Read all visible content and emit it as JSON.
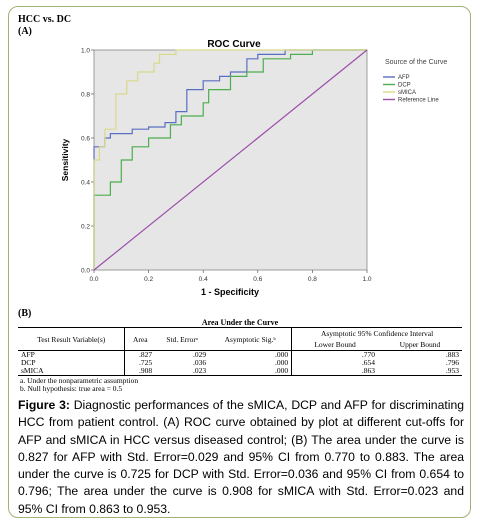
{
  "figure": {
    "title": "HCC vs. DC",
    "panel_a": "(A)",
    "panel_b": "(B)"
  },
  "chart_data": {
    "type": "line",
    "title": "ROC Curve",
    "xlabel": "1 - Specificity",
    "ylabel": "Sensitivity",
    "xlim": [
      0,
      1
    ],
    "ylim": [
      0,
      1
    ],
    "x_ticks": [
      "0.0",
      "0.2",
      "0.4",
      "0.6",
      "0.8",
      "1.0"
    ],
    "y_ticks": [
      "0.0",
      "0.2",
      "0.4",
      "0.6",
      "0.8",
      "1.0"
    ],
    "grid": false,
    "legend_title": "Source of the Curve",
    "legend_position": "right",
    "plot_background": "#e6e6e6",
    "series": [
      {
        "name": "AFP",
        "color": "#5b6fc2",
        "x": [
          0,
          0,
          0.04,
          0.04,
          0.06,
          0.06,
          0.14,
          0.14,
          0.2,
          0.2,
          0.26,
          0.26,
          0.3,
          0.3,
          0.34,
          0.34,
          0.4,
          0.4,
          0.46,
          0.46,
          0.5,
          0.5,
          0.56,
          0.56,
          0.6,
          0.6,
          0.7,
          0.7,
          1.0
        ],
        "y": [
          0,
          0.56,
          0.56,
          0.6,
          0.6,
          0.62,
          0.62,
          0.64,
          0.64,
          0.65,
          0.65,
          0.67,
          0.67,
          0.72,
          0.72,
          0.82,
          0.82,
          0.86,
          0.86,
          0.88,
          0.88,
          0.9,
          0.9,
          0.96,
          0.96,
          0.98,
          0.98,
          1.0,
          1.0
        ]
      },
      {
        "name": "DCP",
        "color": "#4cae4c",
        "x": [
          0,
          0,
          0.06,
          0.06,
          0.1,
          0.1,
          0.14,
          0.14,
          0.2,
          0.2,
          0.28,
          0.28,
          0.32,
          0.32,
          0.4,
          0.4,
          0.42,
          0.42,
          0.5,
          0.5,
          0.56,
          0.56,
          0.62,
          0.62,
          0.72,
          0.72,
          0.8,
          0.8,
          1.0
        ],
        "y": [
          0,
          0.34,
          0.34,
          0.4,
          0.4,
          0.5,
          0.5,
          0.56,
          0.56,
          0.6,
          0.6,
          0.66,
          0.66,
          0.7,
          0.7,
          0.76,
          0.76,
          0.82,
          0.82,
          0.88,
          0.88,
          0.9,
          0.9,
          0.96,
          0.96,
          0.98,
          0.98,
          1.0,
          1.0
        ]
      },
      {
        "name": "sMICA",
        "color": "#d9d98a",
        "x": [
          0,
          0,
          0.02,
          0.02,
          0.04,
          0.04,
          0.08,
          0.08,
          0.12,
          0.12,
          0.16,
          0.16,
          0.22,
          0.22,
          0.24,
          0.24,
          0.3,
          0.3,
          1.0
        ],
        "y": [
          0,
          0.5,
          0.5,
          0.56,
          0.56,
          0.64,
          0.64,
          0.8,
          0.8,
          0.86,
          0.86,
          0.9,
          0.9,
          0.94,
          0.94,
          0.98,
          0.98,
          1.0,
          1.0
        ]
      },
      {
        "name": "Reference Line",
        "color": "#9a4ea8",
        "x": [
          0,
          1
        ],
        "y": [
          0,
          1
        ]
      }
    ]
  },
  "table": {
    "caption": "Area Under the Curve",
    "headers": {
      "variable": "Test Result Variable(s)",
      "area": "Area",
      "std_error": "Std. Errorᵃ",
      "asymp_sig": "Asymptotic Sig.ᵇ",
      "ci": "Asymptotic 95% Confidence Interval",
      "lower": "Lower Bound",
      "upper": "Upper Bound"
    },
    "rows": [
      {
        "variable": "AFP",
        "area": ".827",
        "std_error": ".029",
        "sig": ".000",
        "lower": ".770",
        "upper": ".883"
      },
      {
        "variable": "DCP",
        "area": ".725",
        "std_error": ".036",
        "sig": ".000",
        "lower": ".654",
        "upper": ".796"
      },
      {
        "variable": "sMICA",
        "area": ".908",
        "std_error": ".023",
        "sig": ".000",
        "lower": ".863",
        "upper": ".953"
      }
    ],
    "footnote_a": "a. Under the nonparametric assumption",
    "footnote_b": "b. Null hypothesis: true area = 0.5"
  },
  "caption": {
    "label": "Figure 3:",
    "text": " Diagnostic performances of the sMICA, DCP and AFP for discriminating HCC from patient control. (A) ROC curve obtained by plot at different cut-offs for AFP and sMICA in HCC versus diseased control; (B) The area under the curve is 0.827 for AFP with Std. Error=0.029 and 95% CI from 0.770 to 0.883. The area under the curve is 0.725 for DCP with Std. Error=0.036 and 95% CI from 0.654 to 0.796; The area under the curve is 0.908 for sMICA with Std. Error=0.023 and 95% CI from 0.863 to 0.953."
  }
}
